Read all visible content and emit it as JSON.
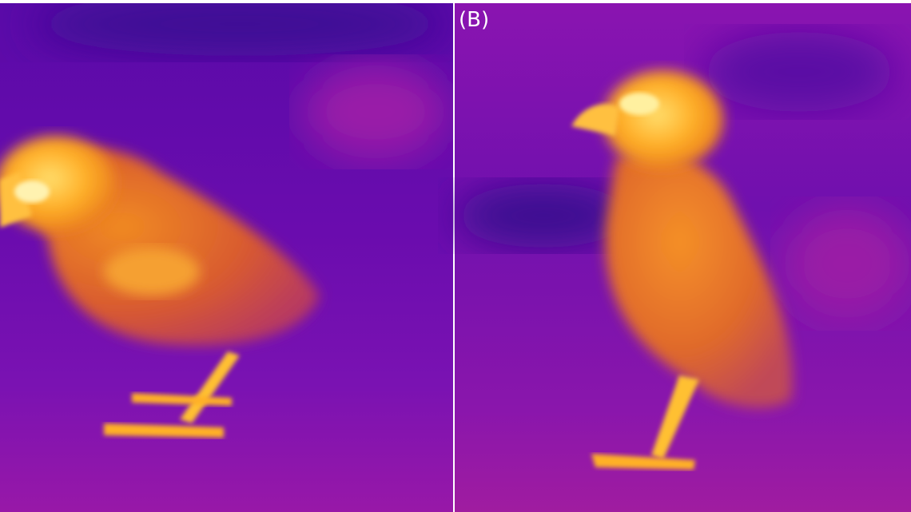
{
  "figure": {
    "panel_label": "(B)",
    "palette": {
      "background_dark": "#4a0aa0",
      "background_mid": "#7a10b0",
      "background_warm": "#a0189a",
      "bird_body": "#e8741a",
      "bird_hot": "#ffd040"
    }
  }
}
